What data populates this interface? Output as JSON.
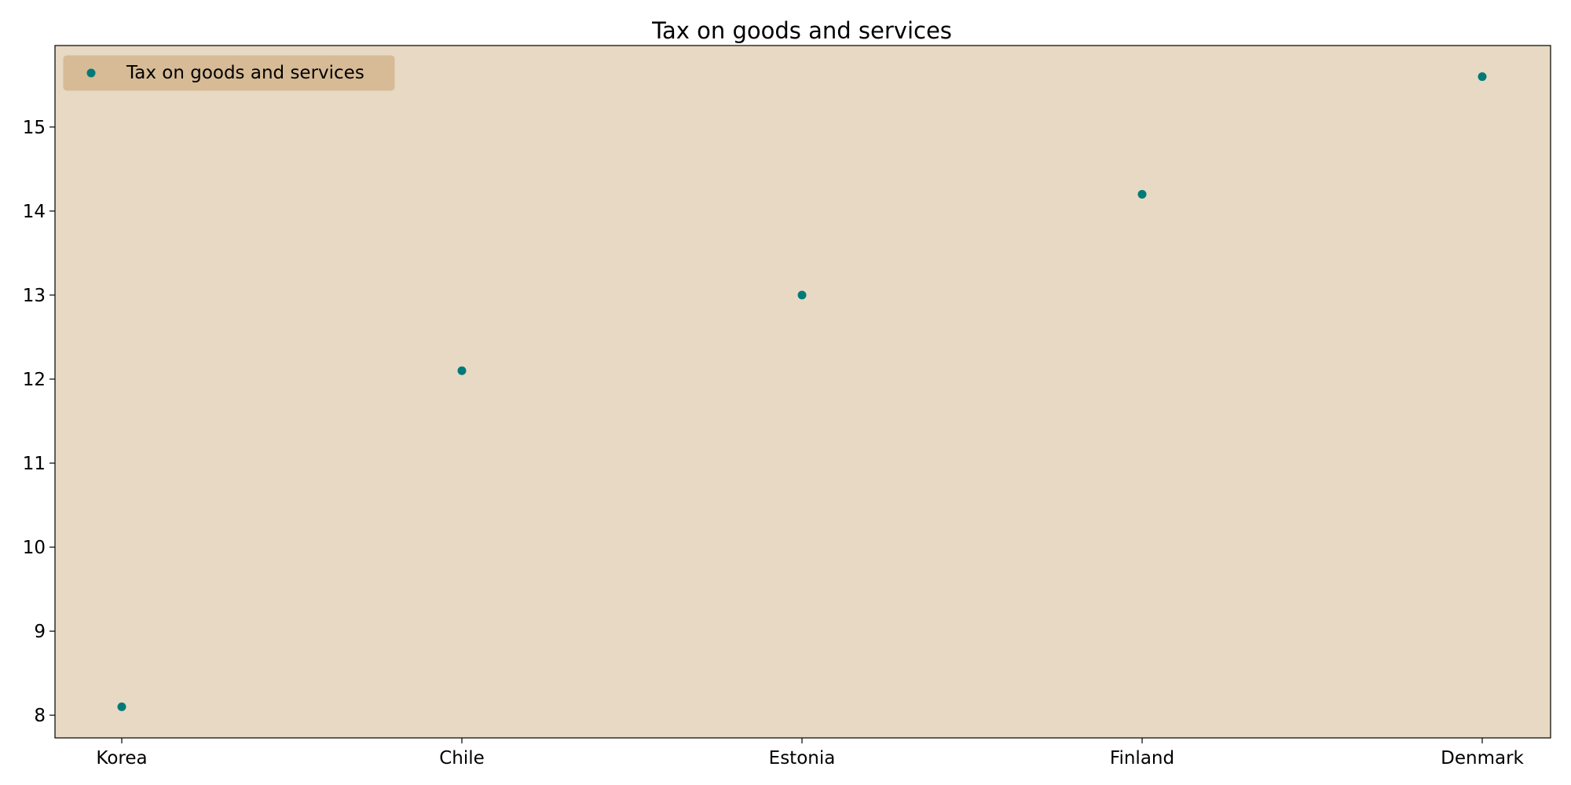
{
  "chart_data": {
    "type": "scatter",
    "title": "Tax on goods and services",
    "xlabel": "",
    "ylabel": "",
    "categories": [
      "Korea",
      "Chile",
      "Estonia",
      "Finland",
      "Denmark"
    ],
    "series": [
      {
        "name": "Tax on goods and services",
        "values": [
          8.1,
          12.1,
          13.0,
          14.2,
          15.6
        ]
      }
    ],
    "y_ticks": [
      "8",
      "9",
      "10",
      "11",
      "12",
      "13",
      "14",
      "15"
    ],
    "ylim": [
      7.73,
      15.97
    ],
    "grid": false,
    "legend_position": "top-left",
    "colors": {
      "marker": "#007a78",
      "plot_background": "#e8d9c4",
      "legend_background": "#d6bb96",
      "figure_background": "#ffffff"
    }
  }
}
